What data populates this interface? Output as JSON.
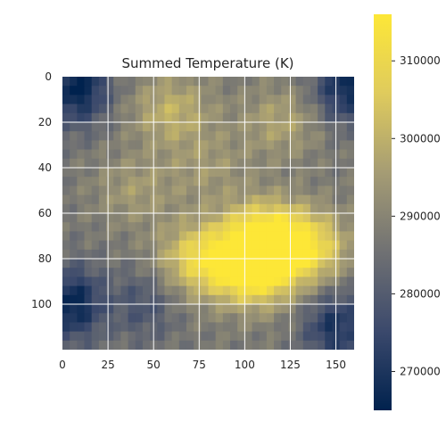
{
  "chart_data": {
    "type": "heatmap",
    "title": "Summed Temperature (K)",
    "xlabel": "",
    "ylabel": "",
    "x_range": [
      0,
      160
    ],
    "y_range": [
      0,
      120
    ],
    "y_inverted": true,
    "x_ticks": [
      0,
      25,
      50,
      75,
      100,
      125,
      150
    ],
    "y_ticks": [
      0,
      20,
      40,
      60,
      80,
      100
    ],
    "grid": true,
    "colormap": "cividis",
    "colormap_stops": [
      "#00224e",
      "#3b496c",
      "#707173",
      "#a59c74",
      "#dfcb5d",
      "#fde737"
    ],
    "colorbar": {
      "range": [
        265000,
        316000
      ],
      "ticks": [
        270000,
        280000,
        290000,
        300000,
        310000
      ],
      "tick_labels": [
        "270000",
        "280000",
        "290000",
        "300000",
        "310000"
      ]
    },
    "value_range": [
      265000,
      316000
    ],
    "hotspots": [
      {
        "x": 105,
        "y": 85,
        "value": 316000
      },
      {
        "x": 110,
        "y": 70,
        "value": 312000
      },
      {
        "x": 135,
        "y": 75,
        "value": 309000
      },
      {
        "x": 75,
        "y": 80,
        "value": 308000
      },
      {
        "x": 60,
        "y": 15,
        "value": 300000
      },
      {
        "x": 120,
        "y": 20,
        "value": 297000
      },
      {
        "x": 40,
        "y": 50,
        "value": 295000
      },
      {
        "x": 80,
        "y": 40,
        "value": 294000
      }
    ],
    "coldspots": [
      {
        "x": 8,
        "y": 5,
        "value": 265000
      },
      {
        "x": 5,
        "y": 100,
        "value": 266000
      },
      {
        "x": 155,
        "y": 5,
        "value": 268000
      },
      {
        "x": 150,
        "y": 110,
        "value": 270000
      },
      {
        "x": 45,
        "y": 100,
        "value": 278000
      }
    ]
  }
}
